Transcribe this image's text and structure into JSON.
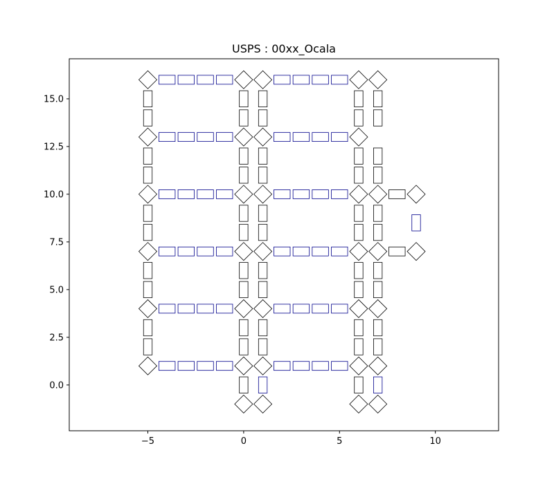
{
  "chart_data": {
    "type": "scatter",
    "title": "USPS : 00xx_Ocala",
    "xlabel": "",
    "ylabel": "",
    "xlim": [
      -9.1,
      13.3
    ],
    "ylim": [
      -2.4,
      17.1
    ],
    "grid": false,
    "legend": "none",
    "xticks": [
      -5,
      0,
      5,
      10
    ],
    "xtick_labels": [
      "−5",
      "0",
      "5",
      "10"
    ],
    "yticks": [
      0,
      2.5,
      5,
      7.5,
      10,
      12.5,
      15
    ],
    "ytick_labels": [
      "0.0",
      "2.5",
      "5.0",
      "7.5",
      "10.0",
      "12.5",
      "15.0"
    ],
    "colors": {
      "black": "#000000",
      "blue": "#00008b"
    },
    "shapes": {
      "diamonds": [
        [
          -5,
          16
        ],
        [
          0,
          16
        ],
        [
          1,
          16
        ],
        [
          6,
          16
        ],
        [
          7,
          16
        ],
        [
          -5,
          13
        ],
        [
          0,
          13
        ],
        [
          1,
          13
        ],
        [
          6,
          13
        ],
        [
          -5,
          10
        ],
        [
          0,
          10
        ],
        [
          1,
          10
        ],
        [
          6,
          10
        ],
        [
          7,
          10
        ],
        [
          9,
          10
        ],
        [
          -5,
          7
        ],
        [
          0,
          7
        ],
        [
          1,
          7
        ],
        [
          6,
          7
        ],
        [
          7,
          7
        ],
        [
          9,
          7
        ],
        [
          -5,
          4
        ],
        [
          0,
          4
        ],
        [
          1,
          4
        ],
        [
          6,
          4
        ],
        [
          7,
          4
        ],
        [
          -5,
          1
        ],
        [
          0,
          1
        ],
        [
          1,
          1
        ],
        [
          6,
          1
        ],
        [
          7,
          1
        ],
        [
          0,
          -1
        ],
        [
          1,
          -1
        ],
        [
          6,
          -1
        ],
        [
          7,
          -1
        ]
      ],
      "horizontal_rects": {
        "black": [
          [
            8,
            10
          ],
          [
            8,
            7
          ]
        ],
        "blue": [
          [
            -4,
            16
          ],
          [
            -3,
            16
          ],
          [
            -2,
            16
          ],
          [
            -1,
            16
          ],
          [
            2,
            16
          ],
          [
            3,
            16
          ],
          [
            4,
            16
          ],
          [
            5,
            16
          ],
          [
            -4,
            13
          ],
          [
            -3,
            13
          ],
          [
            -2,
            13
          ],
          [
            -1,
            13
          ],
          [
            2,
            13
          ],
          [
            3,
            13
          ],
          [
            4,
            13
          ],
          [
            5,
            13
          ],
          [
            -4,
            10
          ],
          [
            -3,
            10
          ],
          [
            -2,
            10
          ],
          [
            -1,
            10
          ],
          [
            2,
            10
          ],
          [
            3,
            10
          ],
          [
            4,
            10
          ],
          [
            5,
            10
          ],
          [
            -4,
            7
          ],
          [
            -3,
            7
          ],
          [
            -2,
            7
          ],
          [
            -1,
            7
          ],
          [
            2,
            7
          ],
          [
            3,
            7
          ],
          [
            4,
            7
          ],
          [
            5,
            7
          ],
          [
            -4,
            4
          ],
          [
            -3,
            4
          ],
          [
            -2,
            4
          ],
          [
            -1,
            4
          ],
          [
            2,
            4
          ],
          [
            3,
            4
          ],
          [
            4,
            4
          ],
          [
            5,
            4
          ],
          [
            -4,
            1
          ],
          [
            -3,
            1
          ],
          [
            -2,
            1
          ],
          [
            -1,
            1
          ],
          [
            2,
            1
          ],
          [
            3,
            1
          ],
          [
            4,
            1
          ],
          [
            5,
            1
          ]
        ]
      },
      "vertical_rects": {
        "black_columns_x": [
          -5,
          0,
          1,
          6,
          7
        ],
        "black_rows_y": [
          15,
          14,
          12,
          11,
          9,
          8,
          6,
          5,
          3,
          2
        ],
        "black_extra": [
          [
            0,
            0
          ],
          [
            6,
            0
          ]
        ],
        "blue": [
          [
            1,
            0
          ],
          [
            7,
            0
          ],
          [
            9,
            8.5
          ]
        ]
      }
    }
  }
}
